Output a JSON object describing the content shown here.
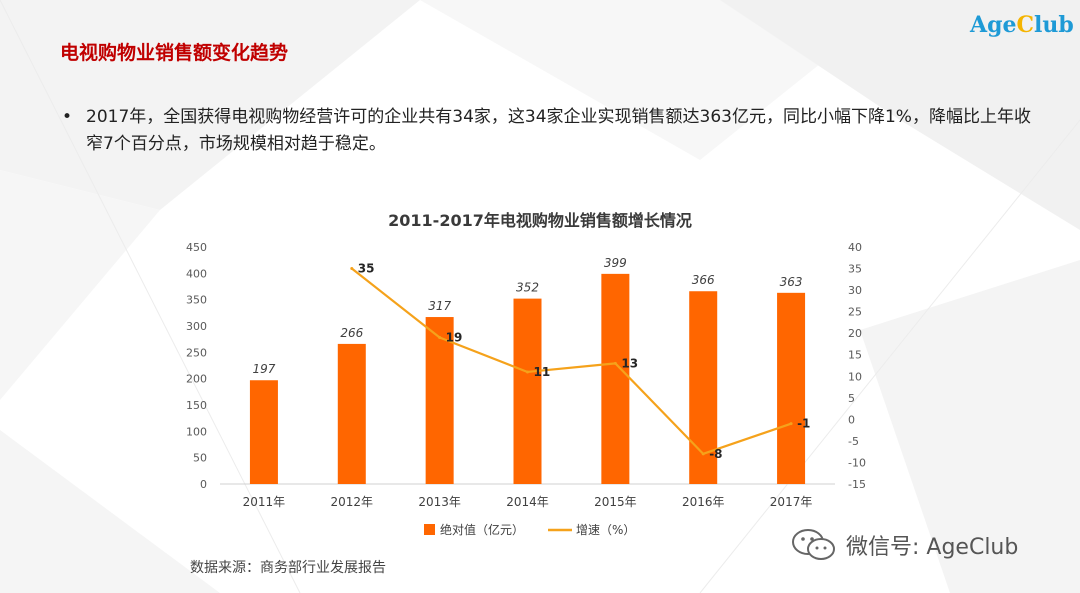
{
  "page": {
    "title": "电视购物业销售额变化趋势",
    "logo": {
      "part1": "Age",
      "part2": "C",
      "part3": "lub"
    },
    "bullet": "2017年，全国获得电视购物经营许可的企业共有34家，这34家企业实现销售额达363亿元，同比小幅下降1%，降幅比上年收窄7个百分点，市场规模相对趋于稳定。",
    "source": "数据来源：商务部行业发展报告",
    "watermark": "微信号: AgeClub"
  },
  "colors": {
    "title": "#c00000",
    "bar": "#ff6600",
    "line": "#f5a21b",
    "logo_blue": "#1e9ad6",
    "logo_yellow": "#f5b400"
  },
  "chart_data": {
    "type": "bar",
    "title": "2011-2017年电视购物业销售额增长情况",
    "categories": [
      "2011年",
      "2012年",
      "2013年",
      "2014年",
      "2015年",
      "2016年",
      "2017年"
    ],
    "series": [
      {
        "name": "绝对值（亿元）",
        "type": "bar",
        "axis": "left",
        "values": [
          197,
          266,
          317,
          352,
          399,
          366,
          363
        ]
      },
      {
        "name": "增速（%）",
        "type": "line",
        "axis": "right",
        "values": [
          null,
          35,
          19,
          11,
          13,
          -8,
          -1
        ]
      }
    ],
    "bar_labels": [
      "197",
      "266",
      "317",
      "352",
      "399",
      "366",
      "363"
    ],
    "line_labels": [
      "",
      "35",
      "19",
      "11",
      "13",
      "-8",
      "-1"
    ],
    "y_left": {
      "min": 0,
      "max": 450,
      "step": 50,
      "ticks": [
        "0",
        "50",
        "100",
        "150",
        "200",
        "250",
        "300",
        "350",
        "400",
        "450"
      ]
    },
    "y_right": {
      "min": -15,
      "max": 40,
      "step": 5,
      "ticks": [
        "-15",
        "-10",
        "-5",
        "0",
        "5",
        "10",
        "15",
        "20",
        "25",
        "30",
        "35",
        "40"
      ]
    },
    "legend": [
      "绝对值（亿元）",
      "增速（%）"
    ],
    "legend_position": "bottom",
    "grid": false
  }
}
